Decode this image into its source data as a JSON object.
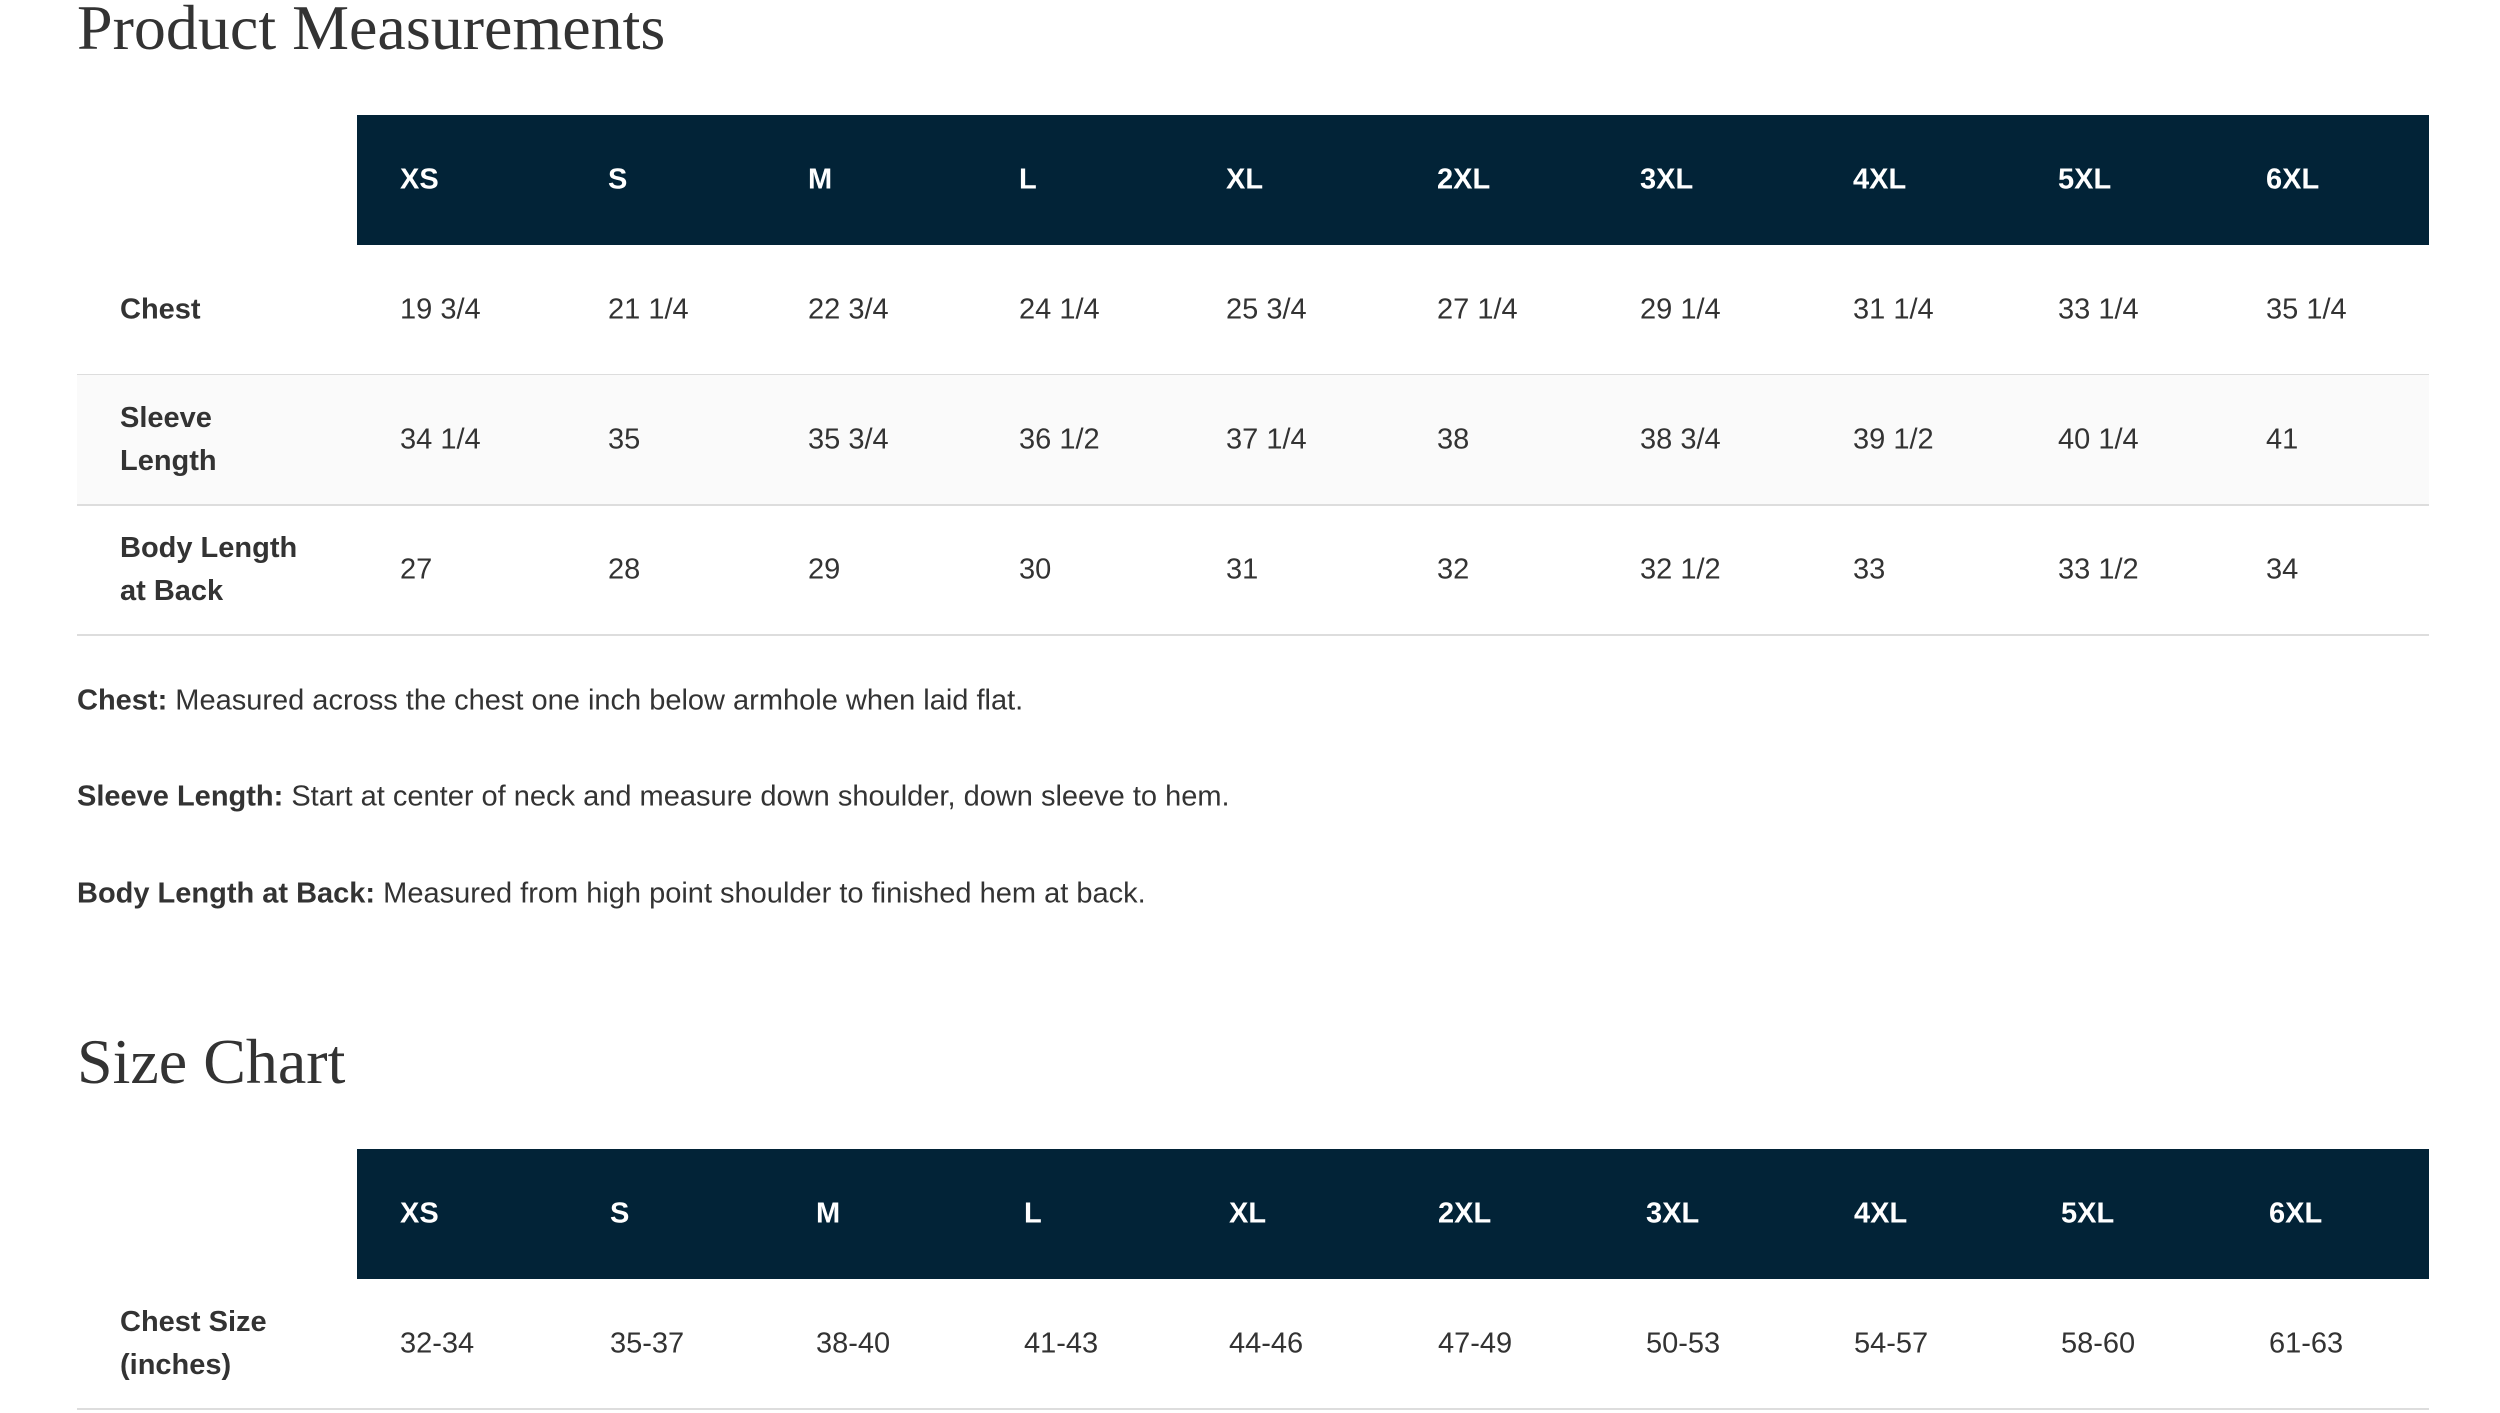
{
  "sections": [
    {
      "title": "Product Measurements",
      "table": {
        "columns": [
          "XS",
          "S",
          "M",
          "L",
          "XL",
          "2XL",
          "3XL",
          "4XL",
          "5XL",
          "6XL"
        ],
        "rows": [
          {
            "label": "Chest",
            "cells": [
              "19 3/4",
              "21 1/4",
              "22 3/4",
              "24 1/4",
              "25 3/4",
              "27 1/4",
              "29 1/4",
              "31 1/4",
              "33 1/4",
              "35 1/4"
            ]
          },
          {
            "label": "Sleeve Length",
            "cells": [
              "34 1/4",
              "35",
              "35 3/4",
              "36 1/2",
              "37 1/4",
              "38",
              "38 3/4",
              "39 1/2",
              "40 1/4",
              "41"
            ]
          },
          {
            "label": "Body Length at Back",
            "cells": [
              "27",
              "28",
              "29",
              "30",
              "31",
              "32",
              "32 1/2",
              "33",
              "33 1/2",
              "34"
            ]
          }
        ]
      },
      "notes": [
        {
          "term": "Chest:",
          "text": "Measured across the chest one inch below armhole when laid flat."
        },
        {
          "term": "Sleeve Length:",
          "text": "Start at center of neck and measure down shoulder, down sleeve to hem."
        },
        {
          "term": "Body Length at Back:",
          "text": "Measured from high point shoulder to finished hem at back."
        }
      ]
    },
    {
      "title": "Size Chart",
      "table": {
        "columns": [
          "XS",
          "S",
          "M",
          "L",
          "XL",
          "2XL",
          "3XL",
          "4XL",
          "5XL",
          "6XL"
        ],
        "rows": [
          {
            "label": "Chest Size (inches)",
            "cells": [
              "32-34",
              "35-37",
              "38-40",
              "41-43",
              "44-46",
              "47-49",
              "50-53",
              "54-57",
              "58-60",
              "61-63"
            ]
          }
        ]
      }
    }
  ]
}
